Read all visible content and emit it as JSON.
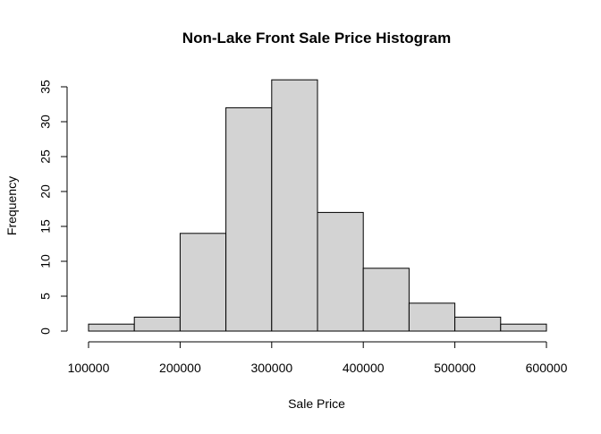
{
  "chart_data": {
    "type": "bar",
    "title": "Non-Lake Front Sale Price Histogram",
    "xlabel": "Sale Price",
    "ylabel": "Frequency",
    "bin_edges": [
      100000,
      150000,
      200000,
      250000,
      300000,
      350000,
      400000,
      450000,
      500000,
      550000,
      600000
    ],
    "values": [
      1,
      2,
      14,
      32,
      36,
      17,
      9,
      4,
      2,
      1
    ],
    "xlim": [
      100000,
      600000
    ],
    "ylim": [
      0,
      35
    ],
    "x_ticks": [
      100000,
      200000,
      300000,
      400000,
      500000,
      600000
    ],
    "x_tick_labels": [
      "100000",
      "200000",
      "300000",
      "400000",
      "500000",
      "600000"
    ],
    "y_ticks": [
      0,
      5,
      10,
      15,
      20,
      25,
      30,
      35
    ],
    "y_tick_labels": [
      "0",
      "5",
      "10",
      "15",
      "20",
      "25",
      "30",
      "35"
    ],
    "bar_color": "#d3d3d3",
    "bar_edge_color": "#000000",
    "grid": false,
    "legend": "none"
  }
}
